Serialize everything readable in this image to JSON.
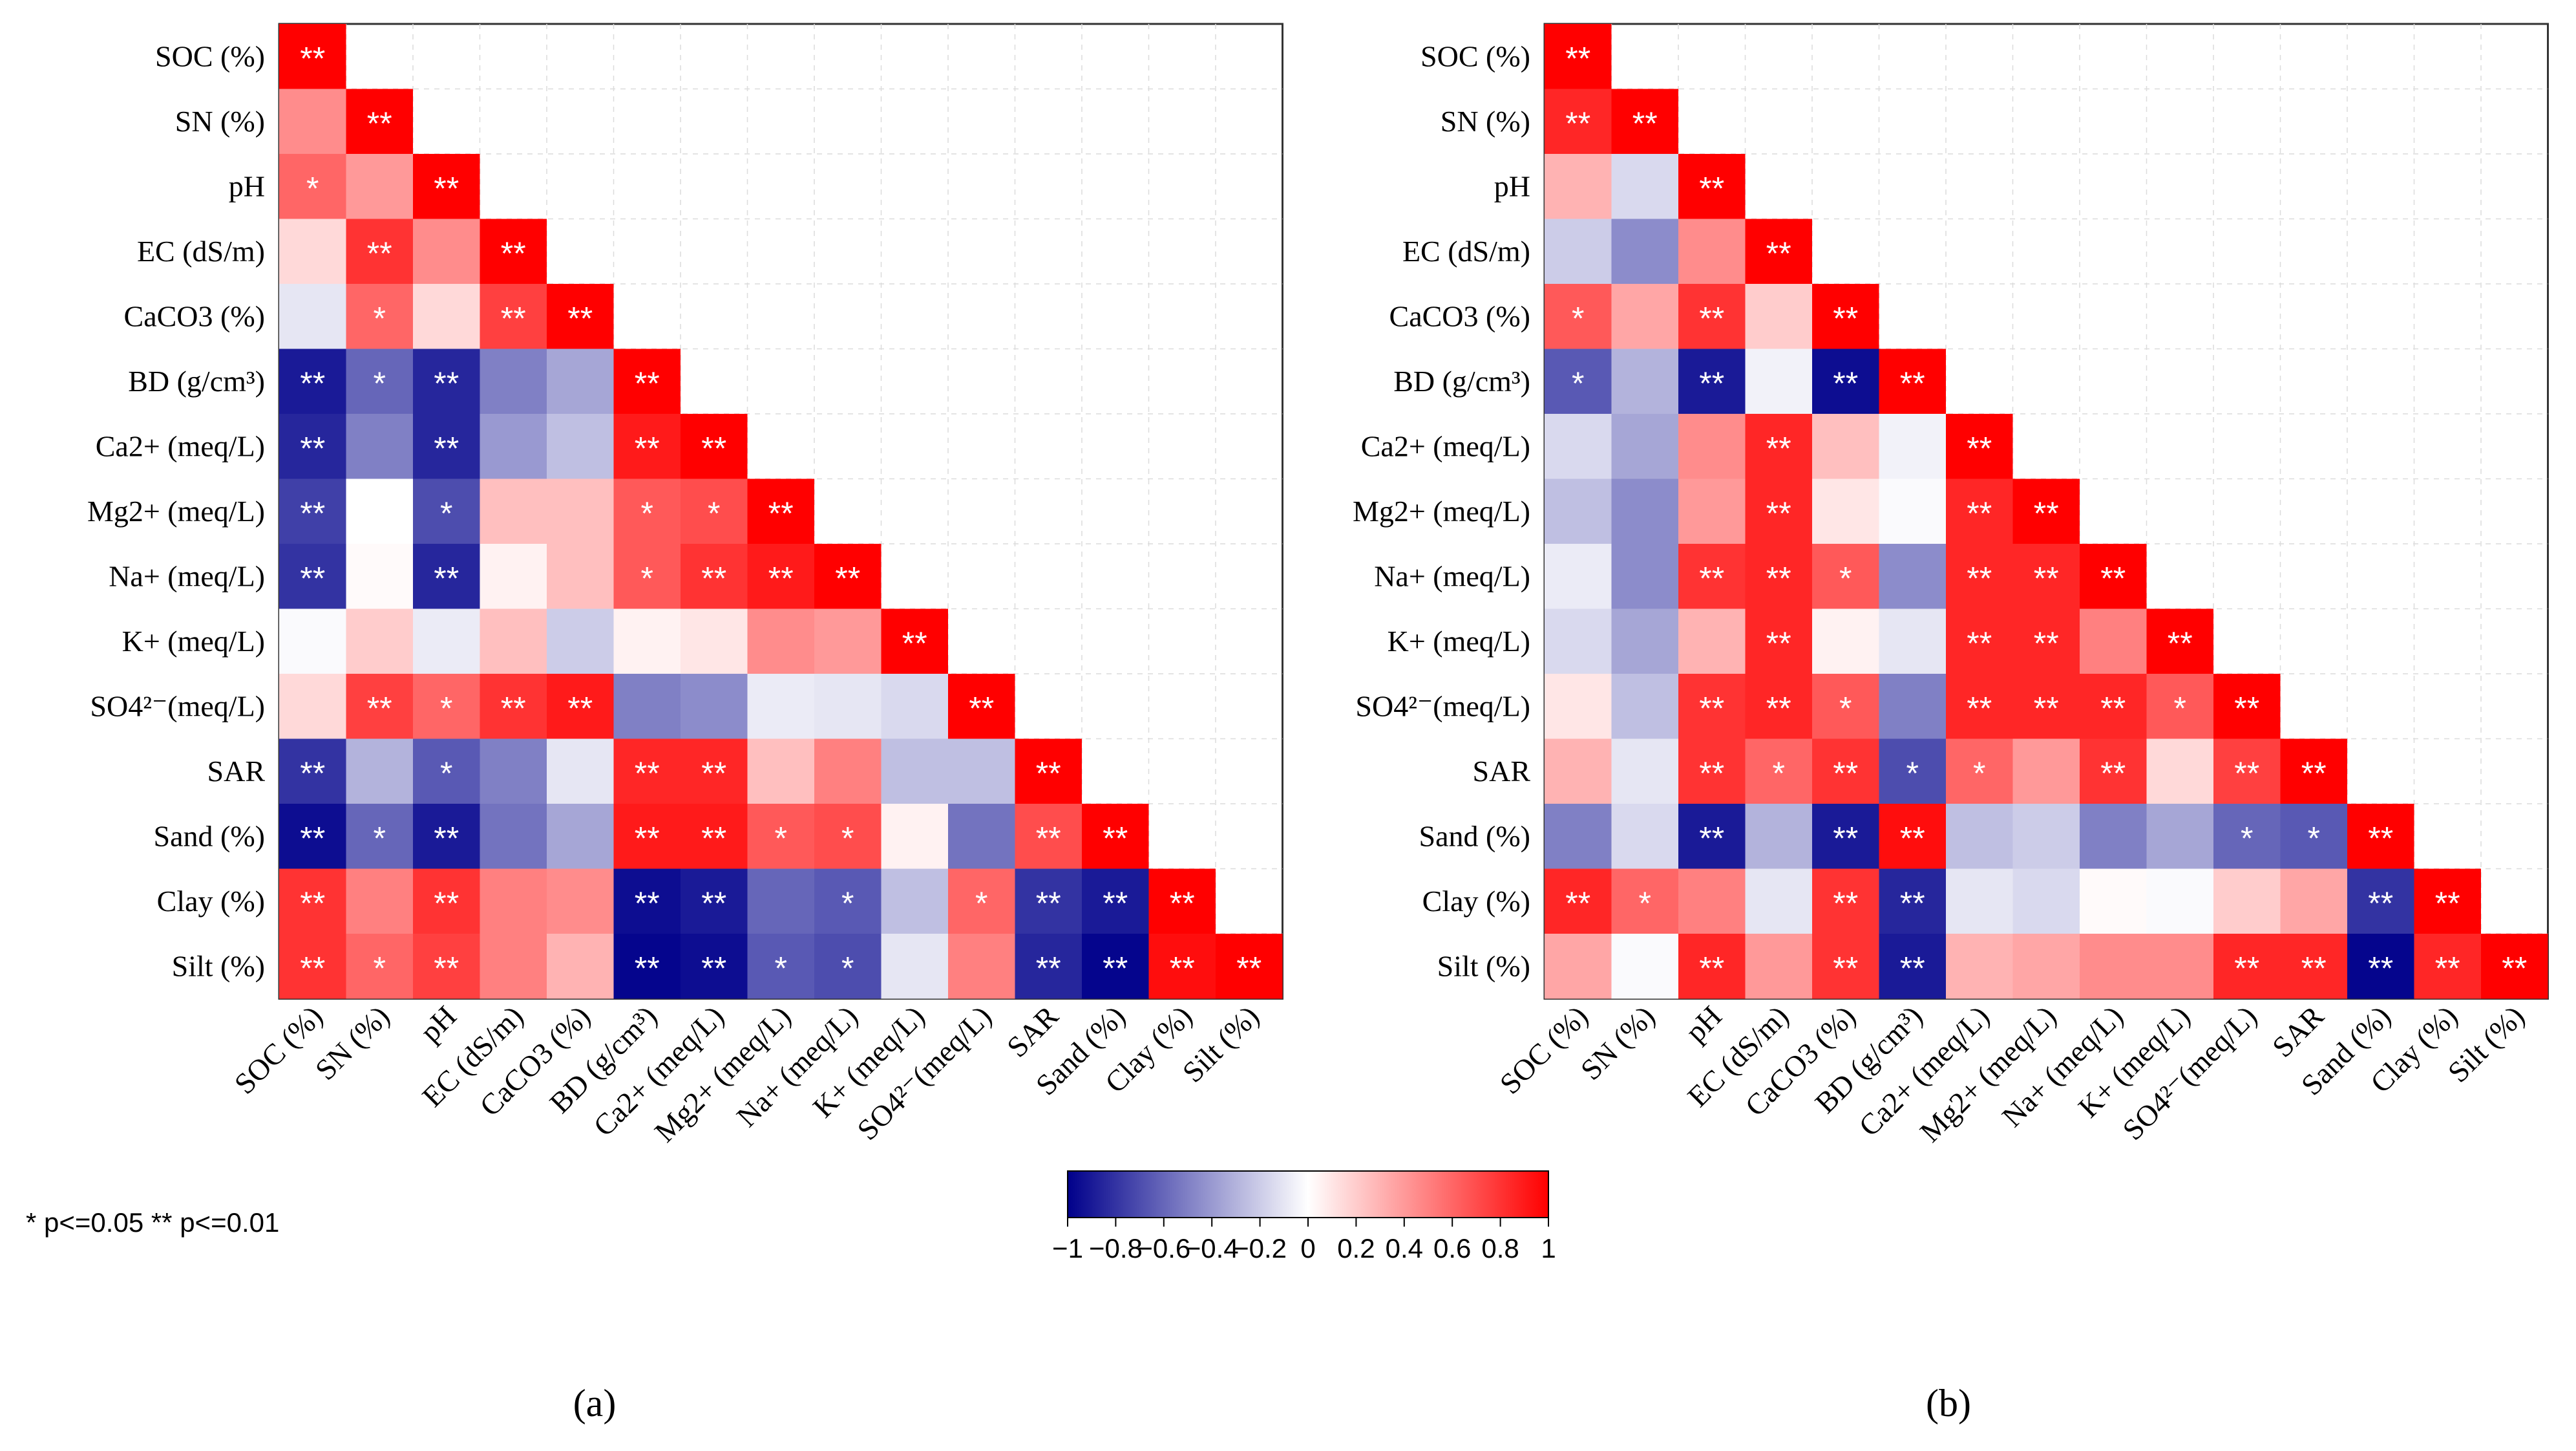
{
  "variables": [
    "SOC (%)",
    "SN (%)",
    "pH",
    "EC (dS/m)",
    "CaCO3 (%)",
    "BD (g/cm³)",
    "Ca2+ (meq/L)",
    "Mg2+ (meq/L)",
    "Na+ (meq/L)",
    "K+ (meq/L)",
    "SO4²⁻(meq/L)",
    "SAR",
    "Sand (%)",
    "Clay (%)",
    "Silt (%)"
  ],
  "legend_note": "* p<=0.05  ** p<=0.01",
  "colorbar": {
    "ticks": [
      "−1",
      "−0.8",
      "−0.6",
      "−0.4",
      "−0.2",
      "0",
      "0.2",
      "0.4",
      "0.6",
      "0.8",
      "1"
    ],
    "tick_values": [
      -1,
      -0.8,
      -0.6,
      -0.4,
      -0.2,
      0,
      0.2,
      0.4,
      0.6,
      0.8,
      1
    ],
    "low_color": "#00008b",
    "mid_color": "#ffffff",
    "high_color": "#ff0000"
  },
  "colors": {
    "grid": "#dcdcdc",
    "frame": "#333333",
    "star_light": "#ffffff",
    "star_dark": "#000000"
  },
  "chart_data": [
    {
      "type": "heatmap",
      "panel": "(a)",
      "title": "",
      "shape": "lower-triangular correlation matrix",
      "value_range": [
        -1,
        1
      ],
      "rows": [
        [
          {
            "v": 1.0,
            "s": "**"
          }
        ],
        [
          {
            "v": 0.45,
            "s": ""
          },
          {
            "v": 1.0,
            "s": "**"
          }
        ],
        [
          {
            "v": 0.6,
            "s": "*"
          },
          {
            "v": 0.4,
            "s": ""
          },
          {
            "v": 1.0,
            "s": "**"
          }
        ],
        [
          {
            "v": 0.15,
            "s": ""
          },
          {
            "v": 0.8,
            "s": "**"
          },
          {
            "v": 0.45,
            "s": ""
          },
          {
            "v": 1.0,
            "s": "**"
          }
        ],
        [
          {
            "v": -0.1,
            "s": ""
          },
          {
            "v": 0.6,
            "s": "*"
          },
          {
            "v": 0.15,
            "s": ""
          },
          {
            "v": 0.75,
            "s": "**"
          },
          {
            "v": 1.0,
            "s": "**"
          }
        ],
        [
          {
            "v": -0.9,
            "s": "**"
          },
          {
            "v": -0.6,
            "s": "*"
          },
          {
            "v": -0.85,
            "s": "**"
          },
          {
            "v": -0.5,
            "s": ""
          },
          {
            "v": -0.35,
            "s": ""
          },
          {
            "v": 1.0,
            "s": "**"
          }
        ],
        [
          {
            "v": -0.85,
            "s": "**"
          },
          {
            "v": -0.5,
            "s": ""
          },
          {
            "v": -0.85,
            "s": "**"
          },
          {
            "v": -0.4,
            "s": ""
          },
          {
            "v": -0.25,
            "s": ""
          },
          {
            "v": 0.9,
            "s": "**"
          },
          {
            "v": 1.0,
            "s": "**"
          }
        ],
        [
          {
            "v": -0.75,
            "s": "**"
          },
          {
            "v": 0.0,
            "s": ""
          },
          {
            "v": -0.7,
            "s": "*"
          },
          {
            "v": 0.25,
            "s": ""
          },
          {
            "v": 0.25,
            "s": ""
          },
          {
            "v": 0.65,
            "s": "*"
          },
          {
            "v": 0.7,
            "s": "*"
          },
          {
            "v": 1.0,
            "s": "**"
          }
        ],
        [
          {
            "v": -0.8,
            "s": "**"
          },
          {
            "v": 0.02,
            "s": ""
          },
          {
            "v": -0.85,
            "s": "**"
          },
          {
            "v": 0.05,
            "s": ""
          },
          {
            "v": 0.25,
            "s": ""
          },
          {
            "v": 0.65,
            "s": "*"
          },
          {
            "v": 0.8,
            "s": "**"
          },
          {
            "v": 0.9,
            "s": "**"
          },
          {
            "v": 1.0,
            "s": "**"
          }
        ],
        [
          {
            "v": -0.02,
            "s": ""
          },
          {
            "v": 0.2,
            "s": ""
          },
          {
            "v": -0.08,
            "s": ""
          },
          {
            "v": 0.25,
            "s": ""
          },
          {
            "v": -0.2,
            "s": ""
          },
          {
            "v": 0.05,
            "s": ""
          },
          {
            "v": 0.1,
            "s": ""
          },
          {
            "v": 0.45,
            "s": ""
          },
          {
            "v": 0.4,
            "s": ""
          },
          {
            "v": 1.0,
            "s": "**"
          }
        ],
        [
          {
            "v": 0.15,
            "s": ""
          },
          {
            "v": 0.75,
            "s": "**"
          },
          {
            "v": 0.6,
            "s": "*"
          },
          {
            "v": 0.8,
            "s": "**"
          },
          {
            "v": 0.9,
            "s": "**"
          },
          {
            "v": -0.5,
            "s": ""
          },
          {
            "v": -0.45,
            "s": ""
          },
          {
            "v": -0.08,
            "s": ""
          },
          {
            "v": -0.1,
            "s": ""
          },
          {
            "v": -0.15,
            "s": ""
          },
          {
            "v": 1.0,
            "s": "**"
          }
        ],
        [
          {
            "v": -0.8,
            "s": "**"
          },
          {
            "v": -0.3,
            "s": ""
          },
          {
            "v": -0.65,
            "s": "*"
          },
          {
            "v": -0.5,
            "s": ""
          },
          {
            "v": -0.1,
            "s": ""
          },
          {
            "v": 0.85,
            "s": "**"
          },
          {
            "v": 0.85,
            "s": "**"
          },
          {
            "v": 0.25,
            "s": ""
          },
          {
            "v": 0.5,
            "s": ""
          },
          {
            "v": -0.25,
            "s": ""
          },
          {
            "v": -0.25,
            "s": ""
          },
          {
            "v": 1.0,
            "s": "**"
          }
        ],
        [
          {
            "v": -0.95,
            "s": "**"
          },
          {
            "v": -0.6,
            "s": "*"
          },
          {
            "v": -0.9,
            "s": "**"
          },
          {
            "v": -0.55,
            "s": ""
          },
          {
            "v": -0.35,
            "s": ""
          },
          {
            "v": 0.9,
            "s": "**"
          },
          {
            "v": 0.9,
            "s": "**"
          },
          {
            "v": 0.65,
            "s": "*"
          },
          {
            "v": 0.7,
            "s": "*"
          },
          {
            "v": 0.05,
            "s": ""
          },
          {
            "v": -0.55,
            "s": ""
          },
          {
            "v": 0.7,
            "s": "**"
          },
          {
            "v": 1.0,
            "s": "**"
          }
        ],
        [
          {
            "v": 0.8,
            "s": "**"
          },
          {
            "v": 0.5,
            "s": ""
          },
          {
            "v": 0.8,
            "s": "**"
          },
          {
            "v": 0.5,
            "s": ""
          },
          {
            "v": 0.45,
            "s": ""
          },
          {
            "v": -0.95,
            "s": "**"
          },
          {
            "v": -0.9,
            "s": "**"
          },
          {
            "v": -0.6,
            "s": ""
          },
          {
            "v": -0.65,
            "s": "*"
          },
          {
            "v": -0.25,
            "s": ""
          },
          {
            "v": 0.6,
            "s": "*"
          },
          {
            "v": -0.8,
            "s": "**"
          },
          {
            "v": -0.9,
            "s": "**"
          },
          {
            "v": 1.0,
            "s": "**"
          }
        ],
        [
          {
            "v": 0.8,
            "s": "**"
          },
          {
            "v": 0.6,
            "s": "*"
          },
          {
            "v": 0.75,
            "s": "**"
          },
          {
            "v": 0.5,
            "s": ""
          },
          {
            "v": 0.3,
            "s": ""
          },
          {
            "v": -0.98,
            "s": "**"
          },
          {
            "v": -0.95,
            "s": "**"
          },
          {
            "v": -0.65,
            "s": "*"
          },
          {
            "v": -0.7,
            "s": "*"
          },
          {
            "v": -0.1,
            "s": ""
          },
          {
            "v": 0.5,
            "s": ""
          },
          {
            "v": -0.85,
            "s": "**"
          },
          {
            "v": -0.98,
            "s": "**"
          },
          {
            "v": 0.95,
            "s": "**"
          },
          {
            "v": 1.0,
            "s": "**"
          }
        ]
      ]
    },
    {
      "type": "heatmap",
      "panel": "(b)",
      "title": "",
      "shape": "lower-triangular correlation matrix",
      "value_range": [
        -1,
        1
      ],
      "rows": [
        [
          {
            "v": 1.0,
            "s": "**"
          }
        ],
        [
          {
            "v": 0.85,
            "s": "**"
          },
          {
            "v": 1.0,
            "s": "**"
          }
        ],
        [
          {
            "v": 0.3,
            "s": ""
          },
          {
            "v": -0.15,
            "s": ""
          },
          {
            "v": 1.0,
            "s": "**"
          }
        ],
        [
          {
            "v": -0.2,
            "s": ""
          },
          {
            "v": -0.45,
            "s": ""
          },
          {
            "v": 0.45,
            "s": ""
          },
          {
            "v": 1.0,
            "s": "**"
          }
        ],
        [
          {
            "v": 0.65,
            "s": "*"
          },
          {
            "v": 0.35,
            "s": ""
          },
          {
            "v": 0.8,
            "s": "**"
          },
          {
            "v": 0.2,
            "s": ""
          },
          {
            "v": 1.0,
            "s": "**"
          }
        ],
        [
          {
            "v": -0.65,
            "s": "*"
          },
          {
            "v": -0.3,
            "s": ""
          },
          {
            "v": -0.9,
            "s": "**"
          },
          {
            "v": -0.05,
            "s": ""
          },
          {
            "v": -0.95,
            "s": "**"
          },
          {
            "v": 1.0,
            "s": "**"
          }
        ],
        [
          {
            "v": -0.15,
            "s": ""
          },
          {
            "v": -0.35,
            "s": ""
          },
          {
            "v": 0.45,
            "s": ""
          },
          {
            "v": 0.85,
            "s": "**"
          },
          {
            "v": 0.25,
            "s": ""
          },
          {
            "v": -0.05,
            "s": ""
          },
          {
            "v": 1.0,
            "s": "**"
          }
        ],
        [
          {
            "v": -0.25,
            "s": ""
          },
          {
            "v": -0.45,
            "s": ""
          },
          {
            "v": 0.4,
            "s": ""
          },
          {
            "v": 0.85,
            "s": "**"
          },
          {
            "v": 0.1,
            "s": ""
          },
          {
            "v": -0.02,
            "s": ""
          },
          {
            "v": 0.85,
            "s": "**"
          },
          {
            "v": 1.0,
            "s": "**"
          }
        ],
        [
          {
            "v": -0.08,
            "s": ""
          },
          {
            "v": -0.45,
            "s": ""
          },
          {
            "v": 0.8,
            "s": "**"
          },
          {
            "v": 0.85,
            "s": "**"
          },
          {
            "v": 0.65,
            "s": "*"
          },
          {
            "v": -0.45,
            "s": ""
          },
          {
            "v": 0.85,
            "s": "**"
          },
          {
            "v": 0.85,
            "s": "**"
          },
          {
            "v": 1.0,
            "s": "**"
          }
        ],
        [
          {
            "v": -0.15,
            "s": ""
          },
          {
            "v": -0.35,
            "s": ""
          },
          {
            "v": 0.3,
            "s": ""
          },
          {
            "v": 0.85,
            "s": "**"
          },
          {
            "v": 0.05,
            "s": ""
          },
          {
            "v": -0.1,
            "s": ""
          },
          {
            "v": 0.85,
            "s": "**"
          },
          {
            "v": 0.85,
            "s": "**"
          },
          {
            "v": 0.5,
            "s": ""
          },
          {
            "v": 1.0,
            "s": "**"
          }
        ],
        [
          {
            "v": 0.1,
            "s": ""
          },
          {
            "v": -0.25,
            "s": ""
          },
          {
            "v": 0.8,
            "s": "**"
          },
          {
            "v": 0.85,
            "s": "**"
          },
          {
            "v": 0.65,
            "s": "*"
          },
          {
            "v": -0.5,
            "s": ""
          },
          {
            "v": 0.85,
            "s": "**"
          },
          {
            "v": 0.85,
            "s": "**"
          },
          {
            "v": 0.85,
            "s": "**"
          },
          {
            "v": 0.65,
            "s": "*"
          },
          {
            "v": 1.0,
            "s": "**"
          }
        ],
        [
          {
            "v": 0.3,
            "s": ""
          },
          {
            "v": -0.1,
            "s": ""
          },
          {
            "v": 0.8,
            "s": "**"
          },
          {
            "v": 0.6,
            "s": "*"
          },
          {
            "v": 0.8,
            "s": "**"
          },
          {
            "v": -0.7,
            "s": "*"
          },
          {
            "v": 0.6,
            "s": "*"
          },
          {
            "v": 0.4,
            "s": ""
          },
          {
            "v": 0.8,
            "s": "**"
          },
          {
            "v": 0.15,
            "s": ""
          },
          {
            "v": 0.75,
            "s": "**"
          },
          {
            "v": 1.0,
            "s": "**"
          }
        ],
        [
          {
            "v": -0.5,
            "s": ""
          },
          {
            "v": -0.15,
            "s": ""
          },
          {
            "v": -0.9,
            "s": "**"
          },
          {
            "v": -0.3,
            "s": ""
          },
          {
            "v": -0.9,
            "s": "**"
          },
          {
            "v": 0.95,
            "s": "**"
          },
          {
            "v": -0.25,
            "s": ""
          },
          {
            "v": -0.2,
            "s": ""
          },
          {
            "v": -0.5,
            "s": ""
          },
          {
            "v": -0.35,
            "s": ""
          },
          {
            "v": -0.6,
            "s": "*"
          },
          {
            "v": -0.65,
            "s": "*"
          },
          {
            "v": 1.0,
            "s": "**"
          }
        ],
        [
          {
            "v": 0.85,
            "s": "**"
          },
          {
            "v": 0.6,
            "s": "*"
          },
          {
            "v": 0.5,
            "s": ""
          },
          {
            "v": -0.1,
            "s": ""
          },
          {
            "v": 0.8,
            "s": "**"
          },
          {
            "v": -0.85,
            "s": "**"
          },
          {
            "v": -0.1,
            "s": ""
          },
          {
            "v": -0.15,
            "s": ""
          },
          {
            "v": 0.02,
            "s": ""
          },
          {
            "v": -0.02,
            "s": ""
          },
          {
            "v": 0.2,
            "s": ""
          },
          {
            "v": 0.35,
            "s": ""
          },
          {
            "v": -0.8,
            "s": "**"
          },
          {
            "v": 1.0,
            "s": "**"
          }
        ],
        [
          {
            "v": 0.35,
            "s": ""
          },
          {
            "v": -0.02,
            "s": ""
          },
          {
            "v": 0.85,
            "s": "**"
          },
          {
            "v": 0.4,
            "s": ""
          },
          {
            "v": 0.8,
            "s": "**"
          },
          {
            "v": -0.9,
            "s": "**"
          },
          {
            "v": 0.3,
            "s": ""
          },
          {
            "v": 0.35,
            "s": ""
          },
          {
            "v": 0.45,
            "s": ""
          },
          {
            "v": 0.45,
            "s": ""
          },
          {
            "v": 0.85,
            "s": "**"
          },
          {
            "v": 0.85,
            "s": "**"
          },
          {
            "v": -0.98,
            "s": "**"
          },
          {
            "v": 0.85,
            "s": "**"
          },
          {
            "v": 1.0,
            "s": "**"
          }
        ]
      ]
    }
  ]
}
